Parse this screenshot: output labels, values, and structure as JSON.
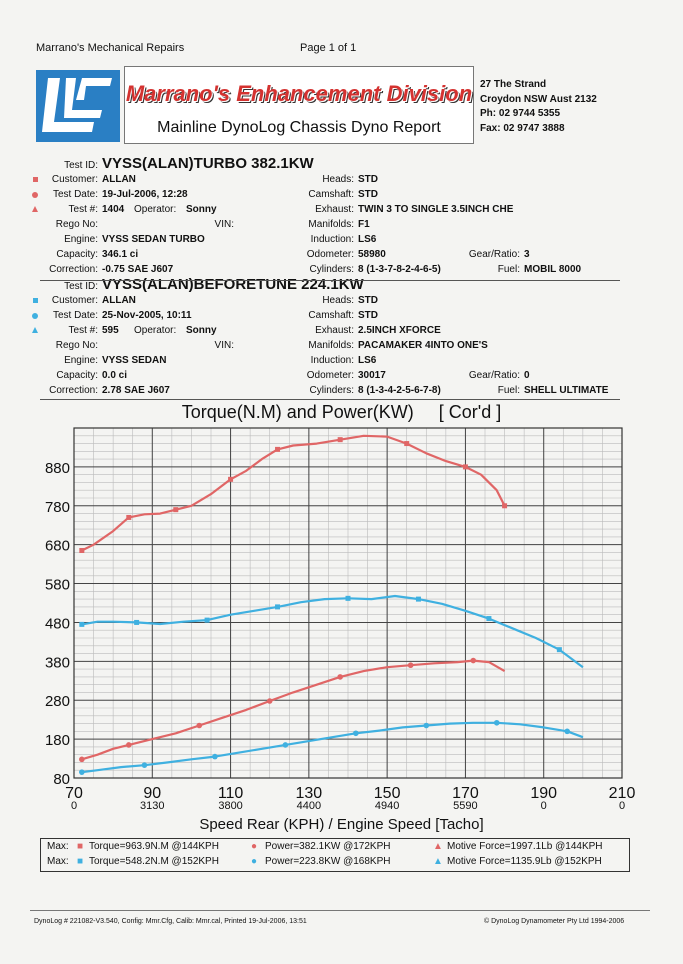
{
  "header": {
    "company": "Marrano's Mechanical Repairs",
    "page": "Page 1 of 1"
  },
  "title": {
    "main": "Marrano's Enhancement Division",
    "sub": "Mainline DynoLog Chassis Dyno Report"
  },
  "address": {
    "line1": "27 The Strand",
    "line2": "Croydon NSW Aust 2132",
    "phone": "Ph: 02 9744 5355",
    "fax": "Fax: 02 9747 3888"
  },
  "test1": {
    "test_id_label": "Test ID:",
    "test_id": "VYSS(ALAN)TURBO 382.1KW",
    "customer_label": "Customer:",
    "customer": "ALLAN",
    "date_label": "Test Date:",
    "date": "19-Jul-2006, 12:28",
    "testno_label": "Test #:",
    "testno": "1404",
    "operator_label": "Operator:",
    "operator": "Sonny",
    "rego_label": "Rego No:",
    "vin_label": "VIN:",
    "engine_label": "Engine:",
    "engine": "VYSS SEDAN TURBO",
    "capacity_label": "Capacity:",
    "capacity": "346.1 ci",
    "correction_label": "Correction:",
    "correction": "-0.75 SAE J607",
    "heads_label": "Heads:",
    "heads": "STD",
    "camshaft_label": "Camshaft:",
    "camshaft": "STD",
    "exhaust_label": "Exhaust:",
    "exhaust": "TWIN 3 TO SINGLE 3.5INCH CHE",
    "manifolds_label": "Manifolds:",
    "manifolds": "F1",
    "induction_label": "Induction:",
    "induction": "LS6",
    "odometer_label": "Odometer:",
    "odometer": "58980",
    "cylinders_label": "Cylinders:",
    "cylinders": "8 (1-3-7-8-2-4-6-5)",
    "gear_label": "Gear/Ratio:",
    "gear": "3",
    "fuel_label": "Fuel:",
    "fuel": "MOBIL 8000"
  },
  "test2": {
    "test_id_label": "Test ID:",
    "test_id": "VYSS(ALAN)BEFORETUNE 224.1KW",
    "customer_label": "Customer:",
    "customer": "ALLAN",
    "date_label": "Test Date:",
    "date": "25-Nov-2005, 10:11",
    "testno_label": "Test #:",
    "testno": "595",
    "operator_label": "Operator:",
    "operator": "Sonny",
    "rego_label": "Rego No:",
    "vin_label": "VIN:",
    "engine_label": "Engine:",
    "engine": "VYSS SEDAN",
    "capacity_label": "Capacity:",
    "capacity": "0.0 ci",
    "correction_label": "Correction:",
    "correction": "2.78 SAE J607",
    "heads_label": "Heads:",
    "heads": "STD",
    "camshaft_label": "Camshaft:",
    "camshaft": "STD",
    "exhaust_label": "Exhaust:",
    "exhaust": "2.5INCH XFORCE",
    "manifolds_label": "Manifolds:",
    "manifolds": "PACAMAKER 4INTO ONE'S",
    "induction_label": "Induction:",
    "induction": "LS6",
    "odometer_label": "Odometer:",
    "odometer": "30017",
    "cylinders_label": "Cylinders:",
    "cylinders": "8 (1-3-4-2-5-6-7-8)",
    "gear_label": "Gear/Ratio:",
    "gear": "0",
    "fuel_label": "Fuel:",
    "fuel": "SHELL ULTIMATE"
  },
  "chart_title": "Torque(N.M) and Power(KW)     [ Cor'd ]",
  "xlabel": "Speed Rear (KPH) / Engine Speed [Tacho]",
  "max1": {
    "label": "Max:",
    "torque": "Torque=963.9N.M @144KPH",
    "power": "Power=382.1KW @172KPH",
    "force": "Motive Force=1997.1Lb @144KPH"
  },
  "max2": {
    "label": "Max:",
    "torque": "Torque=548.2N.M @152KPH",
    "power": "Power=223.8KW @168KPH",
    "force": "Motive Force=1135.9Lb @152KPH"
  },
  "footer": {
    "left": "DynoLog # 221082-V3.540, Config: Mmr.Cfg, Calib: Mmr.cal, Printed 19-Jul-2006, 13:51",
    "right": "© DynoLog Dynamometer Pty Ltd 1994-2006"
  },
  "colors": {
    "red": "#e06666",
    "blue": "#3fb0e0",
    "grid": "#555555"
  },
  "chart_data": {
    "type": "line",
    "title": "Torque(N.M) and Power(KW)     [ Cor'd ]",
    "xlabel": "Speed Rear (KPH) / Engine Speed [Tacho]",
    "xlim": [
      70,
      210
    ],
    "ylim": [
      80,
      980
    ],
    "x_ticks": [
      70,
      90,
      110,
      130,
      150,
      170,
      190,
      210
    ],
    "x_rpm_labels": [
      "0",
      "3130",
      "3800",
      "4400",
      "4940",
      "5590",
      "0",
      "0"
    ],
    "y_ticks": [
      80,
      180,
      280,
      380,
      480,
      580,
      680,
      780,
      880
    ],
    "grid": true,
    "series": [
      {
        "name": "Torque 1",
        "color": "#e06666",
        "marker": "square",
        "x": [
          72,
          75,
          80,
          84,
          88,
          92,
          96,
          100,
          105,
          110,
          114,
          118,
          122,
          126,
          132,
          138,
          144,
          150,
          155,
          160,
          165,
          170,
          174,
          178,
          180
        ],
        "y": [
          665,
          680,
          715,
          750,
          758,
          760,
          770,
          780,
          810,
          848,
          870,
          900,
          925,
          935,
          940,
          950,
          960,
          958,
          940,
          915,
          895,
          880,
          860,
          820,
          780
        ]
      },
      {
        "name": "Power 1",
        "color": "#e06666",
        "marker": "circle",
        "x": [
          72,
          76,
          80,
          84,
          90,
          96,
          102,
          108,
          114,
          120,
          126,
          132,
          138,
          144,
          150,
          156,
          162,
          168,
          172,
          176,
          180
        ],
        "y": [
          128,
          140,
          155,
          165,
          180,
          195,
          215,
          235,
          255,
          278,
          300,
          320,
          340,
          355,
          365,
          370,
          375,
          378,
          382,
          378,
          355
        ]
      },
      {
        "name": "Torque 2",
        "color": "#3fb0e0",
        "marker": "square",
        "x": [
          72,
          76,
          80,
          86,
          92,
          98,
          104,
          110,
          116,
          122,
          128,
          134,
          140,
          146,
          152,
          158,
          164,
          170,
          176,
          182,
          188,
          194,
          200
        ],
        "y": [
          475,
          482,
          482,
          480,
          476,
          482,
          486,
          500,
          510,
          520,
          532,
          540,
          542,
          540,
          548,
          540,
          528,
          510,
          490,
          465,
          440,
          410,
          365
        ]
      },
      {
        "name": "Power 2",
        "color": "#3fb0e0",
        "marker": "circle",
        "x": [
          72,
          76,
          82,
          88,
          94,
          100,
          106,
          112,
          118,
          124,
          130,
          136,
          142,
          148,
          154,
          160,
          166,
          172,
          178,
          184,
          190,
          196,
          200
        ],
        "y": [
          95,
          100,
          108,
          113,
          120,
          128,
          135,
          145,
          155,
          165,
          175,
          185,
          195,
          202,
          210,
          215,
          220,
          222,
          222,
          218,
          210,
          200,
          185
        ]
      }
    ]
  }
}
